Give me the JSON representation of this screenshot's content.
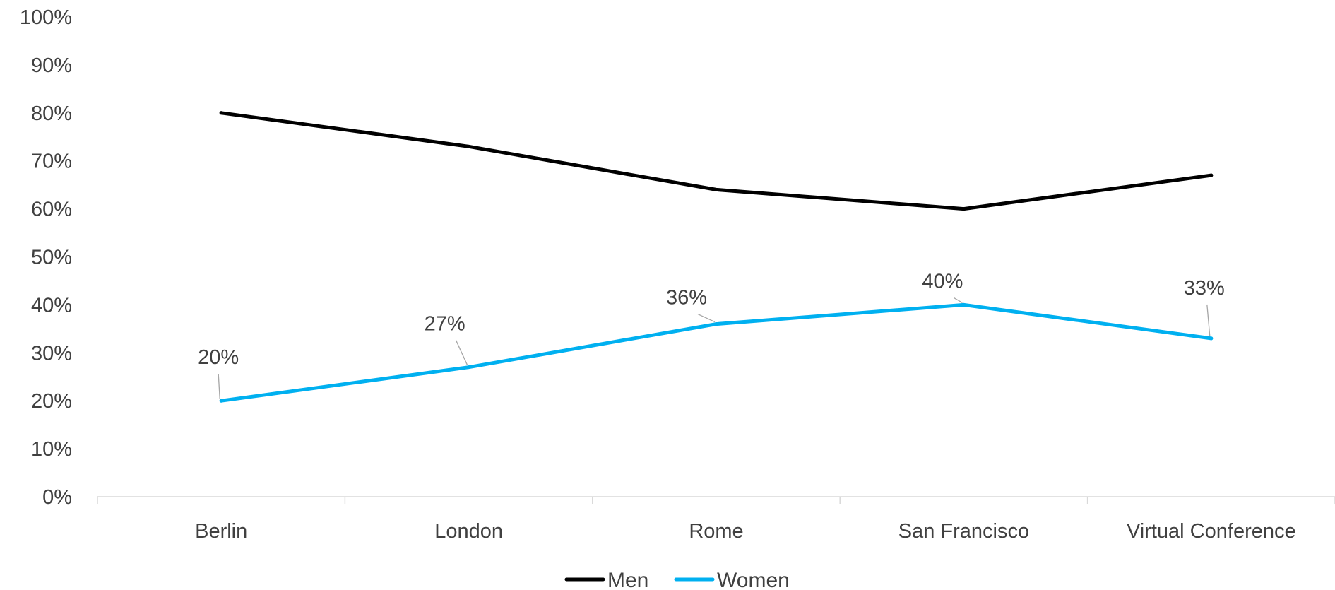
{
  "chart_data": {
    "type": "line",
    "title": "",
    "xlabel": "",
    "ylabel": "",
    "categories": [
      "Berlin",
      "London",
      "Rome",
      "San Francisco",
      "Virtual Conference"
    ],
    "ylim": [
      0,
      1
    ],
    "yticks": [
      "0%",
      "10%",
      "20%",
      "30%",
      "40%",
      "50%",
      "60%",
      "70%",
      "80%",
      "90%",
      "100%"
    ],
    "grid": false,
    "legend": "bottom",
    "series": [
      {
        "name": "Men",
        "color": "#000000",
        "values": [
          0.8,
          0.73,
          0.64,
          0.6,
          0.67
        ],
        "data_labels": []
      },
      {
        "name": "Women",
        "color": "#00B0F0",
        "values": [
          0.2,
          0.27,
          0.36,
          0.4,
          0.33
        ],
        "data_labels": [
          "20%",
          "27%",
          "36%",
          "40%",
          "33%"
        ]
      }
    ]
  }
}
